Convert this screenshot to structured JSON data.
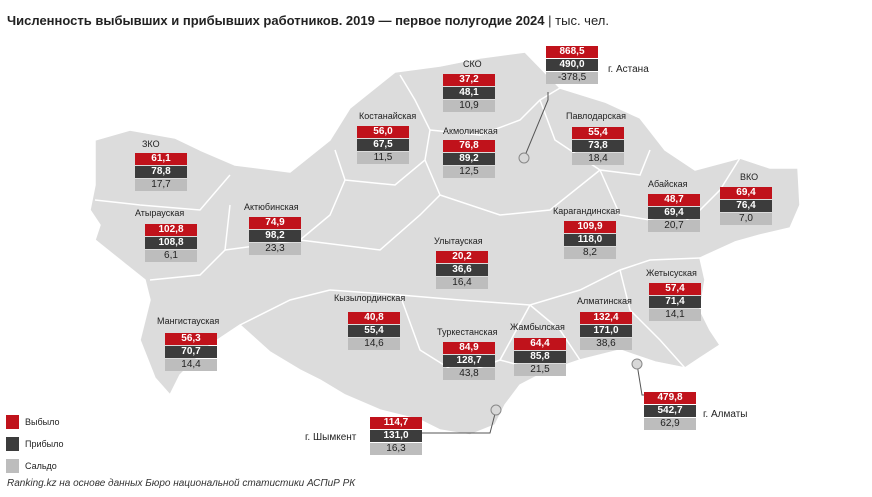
{
  "title": "Численность выбывших и прибывших работников. 2019 — первое полугодие 2024",
  "separator": "|",
  "unit": "тыс. чел.",
  "colors": {
    "left": "#c0121b",
    "arrived": "#3c3c3c",
    "balance": "#bdbdbd",
    "map_fill": "#dcdcdc"
  },
  "regions": [
    {
      "id": "zko",
      "name": "ЗКО",
      "left": "61,1",
      "arrived": "78,8",
      "balance": "17,7"
    },
    {
      "id": "atyrau",
      "name": "Атырауская",
      "left": "102,8",
      "arrived": "108,8",
      "balance": "6,1"
    },
    {
      "id": "aktobe",
      "name": "Актюбинская",
      "left": "74,9",
      "arrived": "98,2",
      "balance": "23,3"
    },
    {
      "id": "kostanay",
      "name": "Костанайская",
      "left": "56,0",
      "arrived": "67,5",
      "balance": "11,5"
    },
    {
      "id": "sko",
      "name": "СКО",
      "left": "37,2",
      "arrived": "48,1",
      "balance": "10,9"
    },
    {
      "id": "akmola",
      "name": "Акмолинская",
      "left": "76,8",
      "arrived": "89,2",
      "balance": "12,5"
    },
    {
      "id": "pavlodar",
      "name": "Павлодарская",
      "left": "55,4",
      "arrived": "73,8",
      "balance": "18,4"
    },
    {
      "id": "abay",
      "name": "Абайская",
      "left": "48,7",
      "arrived": "69,4",
      "balance": "20,7"
    },
    {
      "id": "vko",
      "name": "ВКО",
      "left": "69,4",
      "arrived": "76,4",
      "balance": "7,0"
    },
    {
      "id": "karaganda",
      "name": "Карагандинская",
      "left": "109,9",
      "arrived": "118,0",
      "balance": "8,2"
    },
    {
      "id": "ulytau",
      "name": "Улытауская",
      "left": "20,2",
      "arrived": "36,6",
      "balance": "16,4"
    },
    {
      "id": "zhetysu",
      "name": "Жетысуская",
      "left": "57,4",
      "arrived": "71,4",
      "balance": "14,1"
    },
    {
      "id": "mangystau",
      "name": "Мангистауская",
      "left": "56,3",
      "arrived": "70,7",
      "balance": "14,4"
    },
    {
      "id": "kyzylorda",
      "name": "Кызылординская",
      "left": "40,8",
      "arrived": "55,4",
      "balance": "14,6"
    },
    {
      "id": "turkestan",
      "name": "Туркестанская",
      "left": "84,9",
      "arrived": "128,7",
      "balance": "43,8"
    },
    {
      "id": "zhambyl",
      "name": "Жамбылская",
      "left": "64,4",
      "arrived": "85,8",
      "balance": "21,5"
    },
    {
      "id": "almaty_reg",
      "name": "Алматинская",
      "left": "132,4",
      "arrived": "171,0",
      "balance": "38,6"
    }
  ],
  "cities": [
    {
      "id": "astana",
      "name": "г. Астана",
      "left": "868,5",
      "arrived": "490,0",
      "balance": "-378,5"
    },
    {
      "id": "almaty",
      "name": "г. Алматы",
      "left": "479,8",
      "arrived": "542,7",
      "balance": "62,9"
    },
    {
      "id": "shymkent",
      "name": "г. Шымкент",
      "left": "114,7",
      "arrived": "131,0",
      "balance": "16,3"
    }
  ],
  "legend": {
    "left": "Выбыло",
    "arrived": "Прибыло",
    "balance": "Сальдо"
  },
  "source": "Ranking.kz на основе данных Бюро национальной статистики АСПиР РК"
}
